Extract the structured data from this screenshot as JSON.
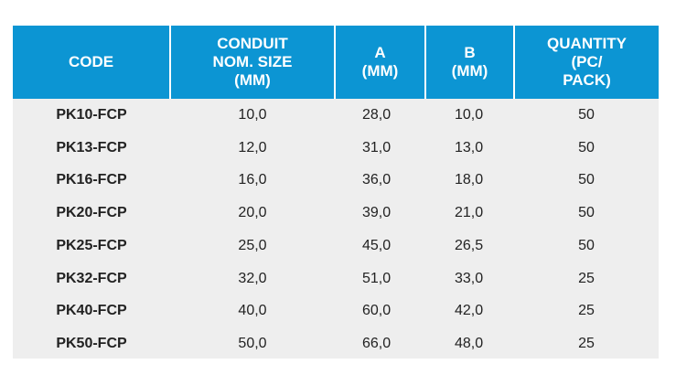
{
  "table": {
    "headers": [
      [
        "CODE"
      ],
      [
        "CONDUIT",
        "NOM. SIZE",
        "(MM)"
      ],
      [
        "A",
        "(MM)"
      ],
      [
        "B",
        "(MM)"
      ],
      [
        "QUANTITY",
        "(PC/",
        "PACK)"
      ]
    ],
    "rows": [
      {
        "code": "PK10-FCP",
        "size": "10,0",
        "a": "28,0",
        "b": "10,0",
        "qty": "50"
      },
      {
        "code": "PK13-FCP",
        "size": "12,0",
        "a": "31,0",
        "b": "13,0",
        "qty": "50"
      },
      {
        "code": "PK16-FCP",
        "size": "16,0",
        "a": "36,0",
        "b": "18,0",
        "qty": "50"
      },
      {
        "code": "PK20-FCP",
        "size": "20,0",
        "a": "39,0",
        "b": "21,0",
        "qty": "50"
      },
      {
        "code": "PK25-FCP",
        "size": "25,0",
        "a": "45,0",
        "b": "26,5",
        "qty": "50"
      },
      {
        "code": "PK32-FCP",
        "size": "32,0",
        "a": "51,0",
        "b": "33,0",
        "qty": "25"
      },
      {
        "code": "PK40-FCP",
        "size": "40,0",
        "a": "60,0",
        "b": "42,0",
        "qty": "25"
      },
      {
        "code": "PK50-FCP",
        "size": "50,0",
        "a": "66,0",
        "b": "48,0",
        "qty": "25"
      }
    ]
  },
  "colors": {
    "header_bg": "#0c95d3",
    "body_bg": "#eeeeee"
  }
}
